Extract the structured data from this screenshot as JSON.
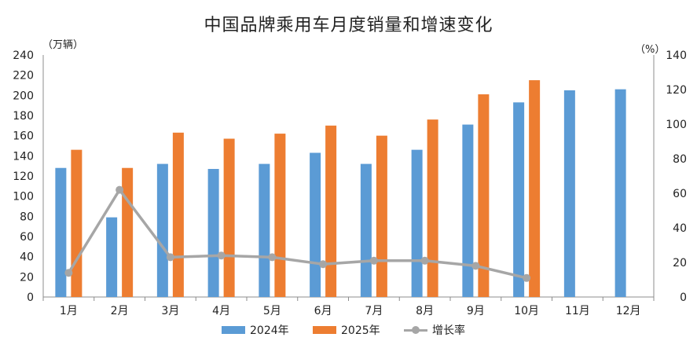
{
  "title": "中国品牌乘用车月度销量和增速变化",
  "left_unit": "（万辆）",
  "right_unit": "（%）",
  "chart_data": {
    "type": "bar",
    "title": "中国品牌乘用车月度销量和增速变化",
    "categories": [
      "1月",
      "2月",
      "3月",
      "4月",
      "5月",
      "6月",
      "7月",
      "8月",
      "9月",
      "10月",
      "11月",
      "12月"
    ],
    "series": [
      {
        "name": "2024年",
        "type": "bar",
        "axis": "left",
        "color": "#5b9bd5",
        "values": [
          128,
          79,
          132,
          127,
          132,
          143,
          132,
          146,
          171,
          193,
          205,
          206
        ]
      },
      {
        "name": "2025年",
        "type": "bar",
        "axis": "left",
        "color": "#ed7d31",
        "values": [
          146,
          128,
          163,
          157,
          162,
          170,
          160,
          176,
          201,
          215,
          null,
          null
        ]
      },
      {
        "name": "增长率",
        "type": "line",
        "axis": "right",
        "color": "#a6a6a6",
        "values": [
          14,
          62,
          23,
          24,
          23,
          19,
          21,
          21,
          18,
          11,
          null,
          null
        ]
      }
    ],
    "ylim_left": [
      0,
      240
    ],
    "yticks_left": [
      0,
      20,
      40,
      60,
      80,
      100,
      120,
      140,
      160,
      180,
      200,
      220,
      240
    ],
    "ylim_right": [
      0,
      140
    ],
    "yticks_right": [
      0,
      20,
      40,
      60,
      80,
      100,
      120,
      140
    ],
    "legend_position": "bottom",
    "grid": false
  }
}
